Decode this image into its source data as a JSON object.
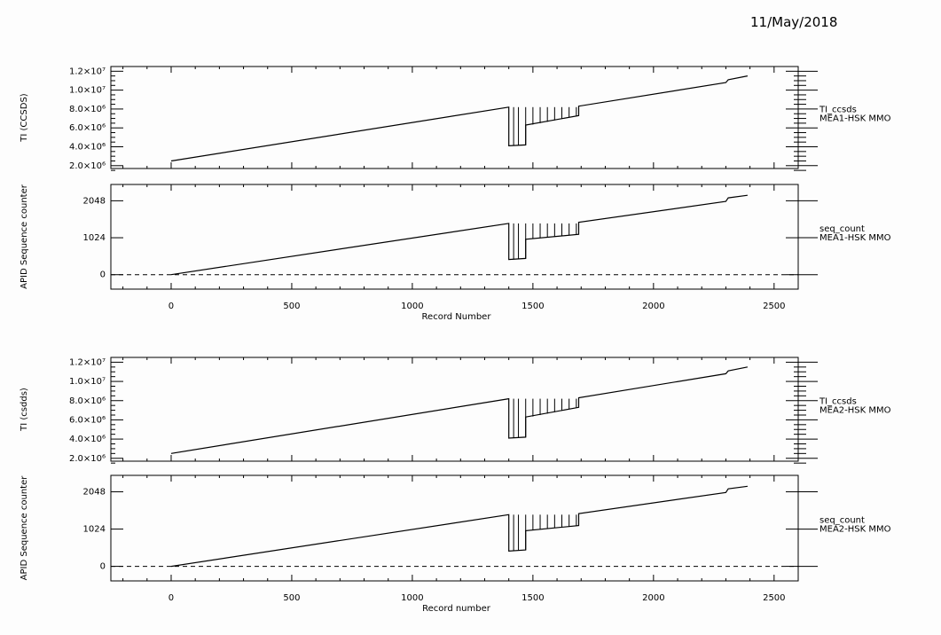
{
  "date_stamp": "11/May/2018",
  "chart_data": [
    {
      "type": "line",
      "ylabel": "TI (CCSDS)",
      "xlabel": "",
      "xlim": [
        -250,
        2600
      ],
      "ylim": [
        1700000,
        12500000
      ],
      "x_ticks": [
        0,
        500,
        1000,
        1500,
        2000,
        2500
      ],
      "y_ticks": [
        {
          "value": 2000000,
          "label": "2.0×10⁶"
        },
        {
          "value": 4000000,
          "label": "4.0×10⁶"
        },
        {
          "value": 6000000,
          "label": "6.0×10⁶"
        },
        {
          "value": 8000000,
          "label": "8.0×10⁶"
        },
        {
          "value": 10000000,
          "label": "1.0×10⁷"
        },
        {
          "value": 12000000,
          "label": "1.2×10⁷"
        }
      ],
      "show_x_tick_labels": false,
      "right_labels": [
        "TI_ccsds",
        "MEA1-HSK MMO"
      ],
      "series": [
        {
          "points": [
            [
              0,
              2500000
            ],
            [
              1400,
              8200000
            ],
            [
              1400,
              4100000
            ],
            [
              1470,
              4200000
            ],
            [
              1470,
              6300000
            ],
            [
              1690,
              7300000
            ],
            [
              1690,
              8300000
            ],
            [
              2300,
              10800000
            ],
            [
              2310,
              11100000
            ],
            [
              2390,
              11500000
            ]
          ]
        }
      ],
      "spikes": {
        "x": [
          1420,
          1440,
          1470,
          1500,
          1530,
          1560,
          1590,
          1620,
          1650,
          1680
        ],
        "bottom": [
          4100000,
          4150000,
          4200000,
          6350000,
          6500000,
          6650000,
          6800000,
          6950000,
          7100000,
          7250000
        ],
        "top": 8200000
      },
      "zero_line": false
    },
    {
      "type": "line",
      "ylabel": "APID Sequence counter",
      "xlabel": "Record Number",
      "xlim": [
        -250,
        2600
      ],
      "ylim": [
        -400,
        2500
      ],
      "x_ticks": [
        0,
        500,
        1000,
        1500,
        2000,
        2500
      ],
      "y_ticks": [
        {
          "value": 0,
          "label": "0"
        },
        {
          "value": 1024,
          "label": "1024"
        },
        {
          "value": 2048,
          "label": "2048"
        }
      ],
      "show_x_tick_labels": true,
      "right_labels": [
        "seq_count",
        "MEA1-HSK MMO"
      ],
      "series": [
        {
          "points": [
            [
              0,
              0
            ],
            [
              1400,
              1420
            ],
            [
              1400,
              420
            ],
            [
              1470,
              450
            ],
            [
              1470,
              980
            ],
            [
              1690,
              1120
            ],
            [
              1690,
              1450
            ],
            [
              2300,
              2030
            ],
            [
              2310,
              2130
            ],
            [
              2390,
              2200
            ]
          ]
        }
      ],
      "spikes": {
        "x": [
          1420,
          1440,
          1470,
          1500,
          1530,
          1560,
          1590,
          1620,
          1650,
          1680
        ],
        "bottom": [
          420,
          430,
          450,
          990,
          1010,
          1030,
          1050,
          1070,
          1090,
          1110
        ],
        "top": 1420
      },
      "zero_line": true
    },
    {
      "type": "line",
      "ylabel": "TI (csdds)",
      "xlabel": "",
      "xlim": [
        -250,
        2600
      ],
      "ylim": [
        1700000,
        12500000
      ],
      "x_ticks": [
        0,
        500,
        1000,
        1500,
        2000,
        2500
      ],
      "y_ticks": [
        {
          "value": 2000000,
          "label": "2.0×10⁶"
        },
        {
          "value": 4000000,
          "label": "4.0×10⁶"
        },
        {
          "value": 6000000,
          "label": "6.0×10⁶"
        },
        {
          "value": 8000000,
          "label": "8.0×10⁶"
        },
        {
          "value": 10000000,
          "label": "1.0×10⁷"
        },
        {
          "value": 12000000,
          "label": "1.2×10⁷"
        }
      ],
      "show_x_tick_labels": false,
      "right_labels": [
        "TI_ccsds",
        "MEA2-HSK MMO"
      ],
      "series": [
        {
          "points": [
            [
              0,
              2500000
            ],
            [
              1400,
              8200000
            ],
            [
              1400,
              4100000
            ],
            [
              1470,
              4200000
            ],
            [
              1470,
              6300000
            ],
            [
              1690,
              7300000
            ],
            [
              1690,
              8300000
            ],
            [
              2300,
              10800000
            ],
            [
              2310,
              11100000
            ],
            [
              2390,
              11500000
            ]
          ]
        }
      ],
      "spikes": {
        "x": [
          1420,
          1440,
          1470,
          1500,
          1530,
          1560,
          1590,
          1620,
          1650,
          1680
        ],
        "bottom": [
          4100000,
          4150000,
          4200000,
          6350000,
          6500000,
          6650000,
          6800000,
          6950000,
          7100000,
          7250000
        ],
        "top": 8200000
      },
      "zero_line": false
    },
    {
      "type": "line",
      "ylabel": "APID Sequence counter",
      "xlabel": "Record number",
      "xlim": [
        -250,
        2600
      ],
      "ylim": [
        -400,
        2500
      ],
      "x_ticks": [
        0,
        500,
        1000,
        1500,
        2000,
        2500
      ],
      "y_ticks": [
        {
          "value": 0,
          "label": "0"
        },
        {
          "value": 1024,
          "label": "1024"
        },
        {
          "value": 2048,
          "label": "2048"
        }
      ],
      "show_x_tick_labels": true,
      "right_labels": [
        "seq_count",
        "MEA2-HSK MMO"
      ],
      "series": [
        {
          "points": [
            [
              0,
              0
            ],
            [
              1400,
              1420
            ],
            [
              1400,
              420
            ],
            [
              1470,
              450
            ],
            [
              1470,
              980
            ],
            [
              1690,
              1120
            ],
            [
              1690,
              1450
            ],
            [
              2300,
              2030
            ],
            [
              2310,
              2130
            ],
            [
              2390,
              2200
            ]
          ]
        }
      ],
      "spikes": {
        "x": [
          1420,
          1440,
          1470,
          1500,
          1530,
          1560,
          1590,
          1620,
          1650,
          1680
        ],
        "bottom": [
          420,
          430,
          450,
          990,
          1010,
          1030,
          1050,
          1070,
          1090,
          1110
        ],
        "top": 1420
      },
      "zero_line": true
    }
  ]
}
